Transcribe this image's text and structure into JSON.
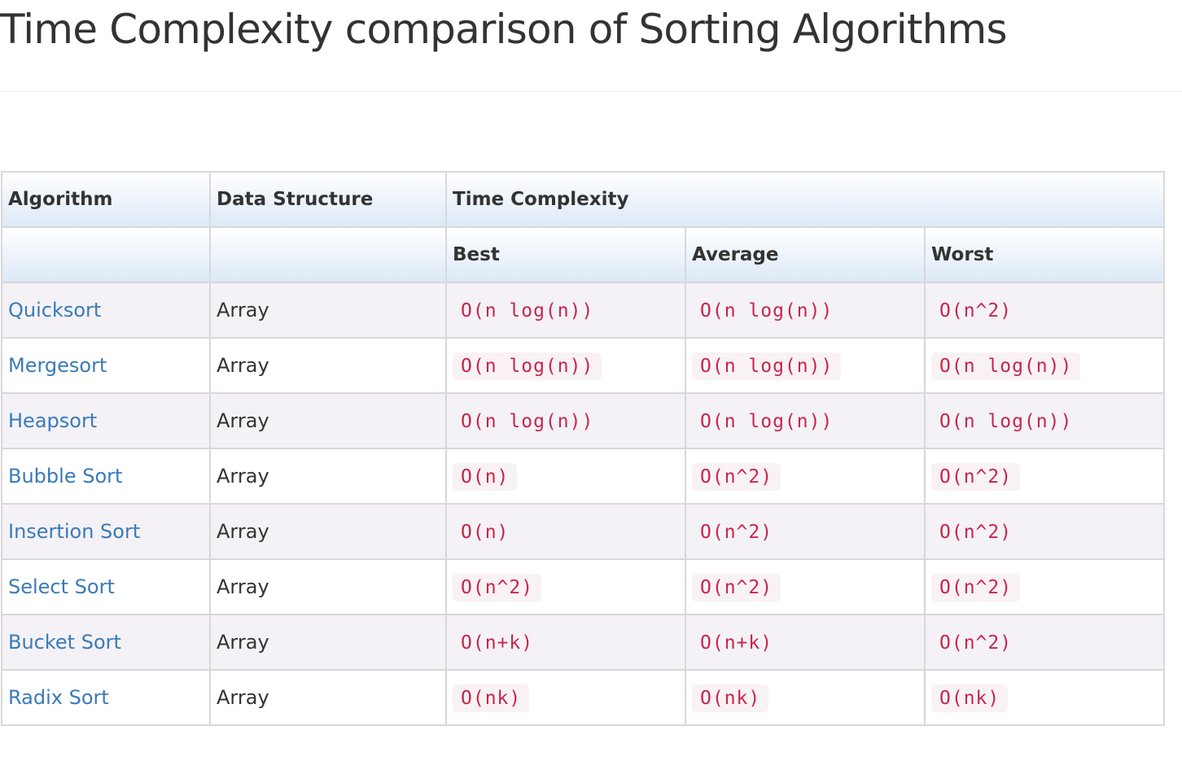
{
  "page": {
    "title": "Time Complexity comparison of Sorting Algorithms"
  },
  "table": {
    "headers": {
      "algorithm": "Algorithm",
      "data_structure": "Data Structure",
      "time_complexity": "Time Complexity",
      "best": "Best",
      "average": "Average",
      "worst": "Worst"
    },
    "rows": [
      {
        "algorithm": "Quicksort",
        "data_structure": "Array",
        "best": "O(n log(n))",
        "average": "O(n log(n))",
        "worst": "O(n^2)"
      },
      {
        "algorithm": "Mergesort",
        "data_structure": "Array",
        "best": "O(n log(n))",
        "average": "O(n log(n))",
        "worst": "O(n log(n))"
      },
      {
        "algorithm": "Heapsort",
        "data_structure": "Array",
        "best": "O(n log(n))",
        "average": "O(n log(n))",
        "worst": "O(n log(n))"
      },
      {
        "algorithm": "Bubble Sort",
        "data_structure": "Array",
        "best": "O(n)",
        "average": "O(n^2)",
        "worst": "O(n^2)"
      },
      {
        "algorithm": "Insertion Sort",
        "data_structure": "Array",
        "best": "O(n)",
        "average": "O(n^2)",
        "worst": "O(n^2)"
      },
      {
        "algorithm": "Select Sort",
        "data_structure": "Array",
        "best": "O(n^2)",
        "average": "O(n^2)",
        "worst": "O(n^2)"
      },
      {
        "algorithm": "Bucket Sort",
        "data_structure": "Array",
        "best": "O(n+k)",
        "average": "O(n+k)",
        "worst": "O(n^2)"
      },
      {
        "algorithm": "Radix Sort",
        "data_structure": "Array",
        "best": "O(nk)",
        "average": "O(nk)",
        "worst": "O(nk)"
      }
    ]
  },
  "colors": {
    "link": "#3a7ab8",
    "code_text": "#c7254e",
    "code_background": "#f9f2f4",
    "header_gradient_bottom": "#dde9f7",
    "odd_row": "#f4f2f6"
  }
}
